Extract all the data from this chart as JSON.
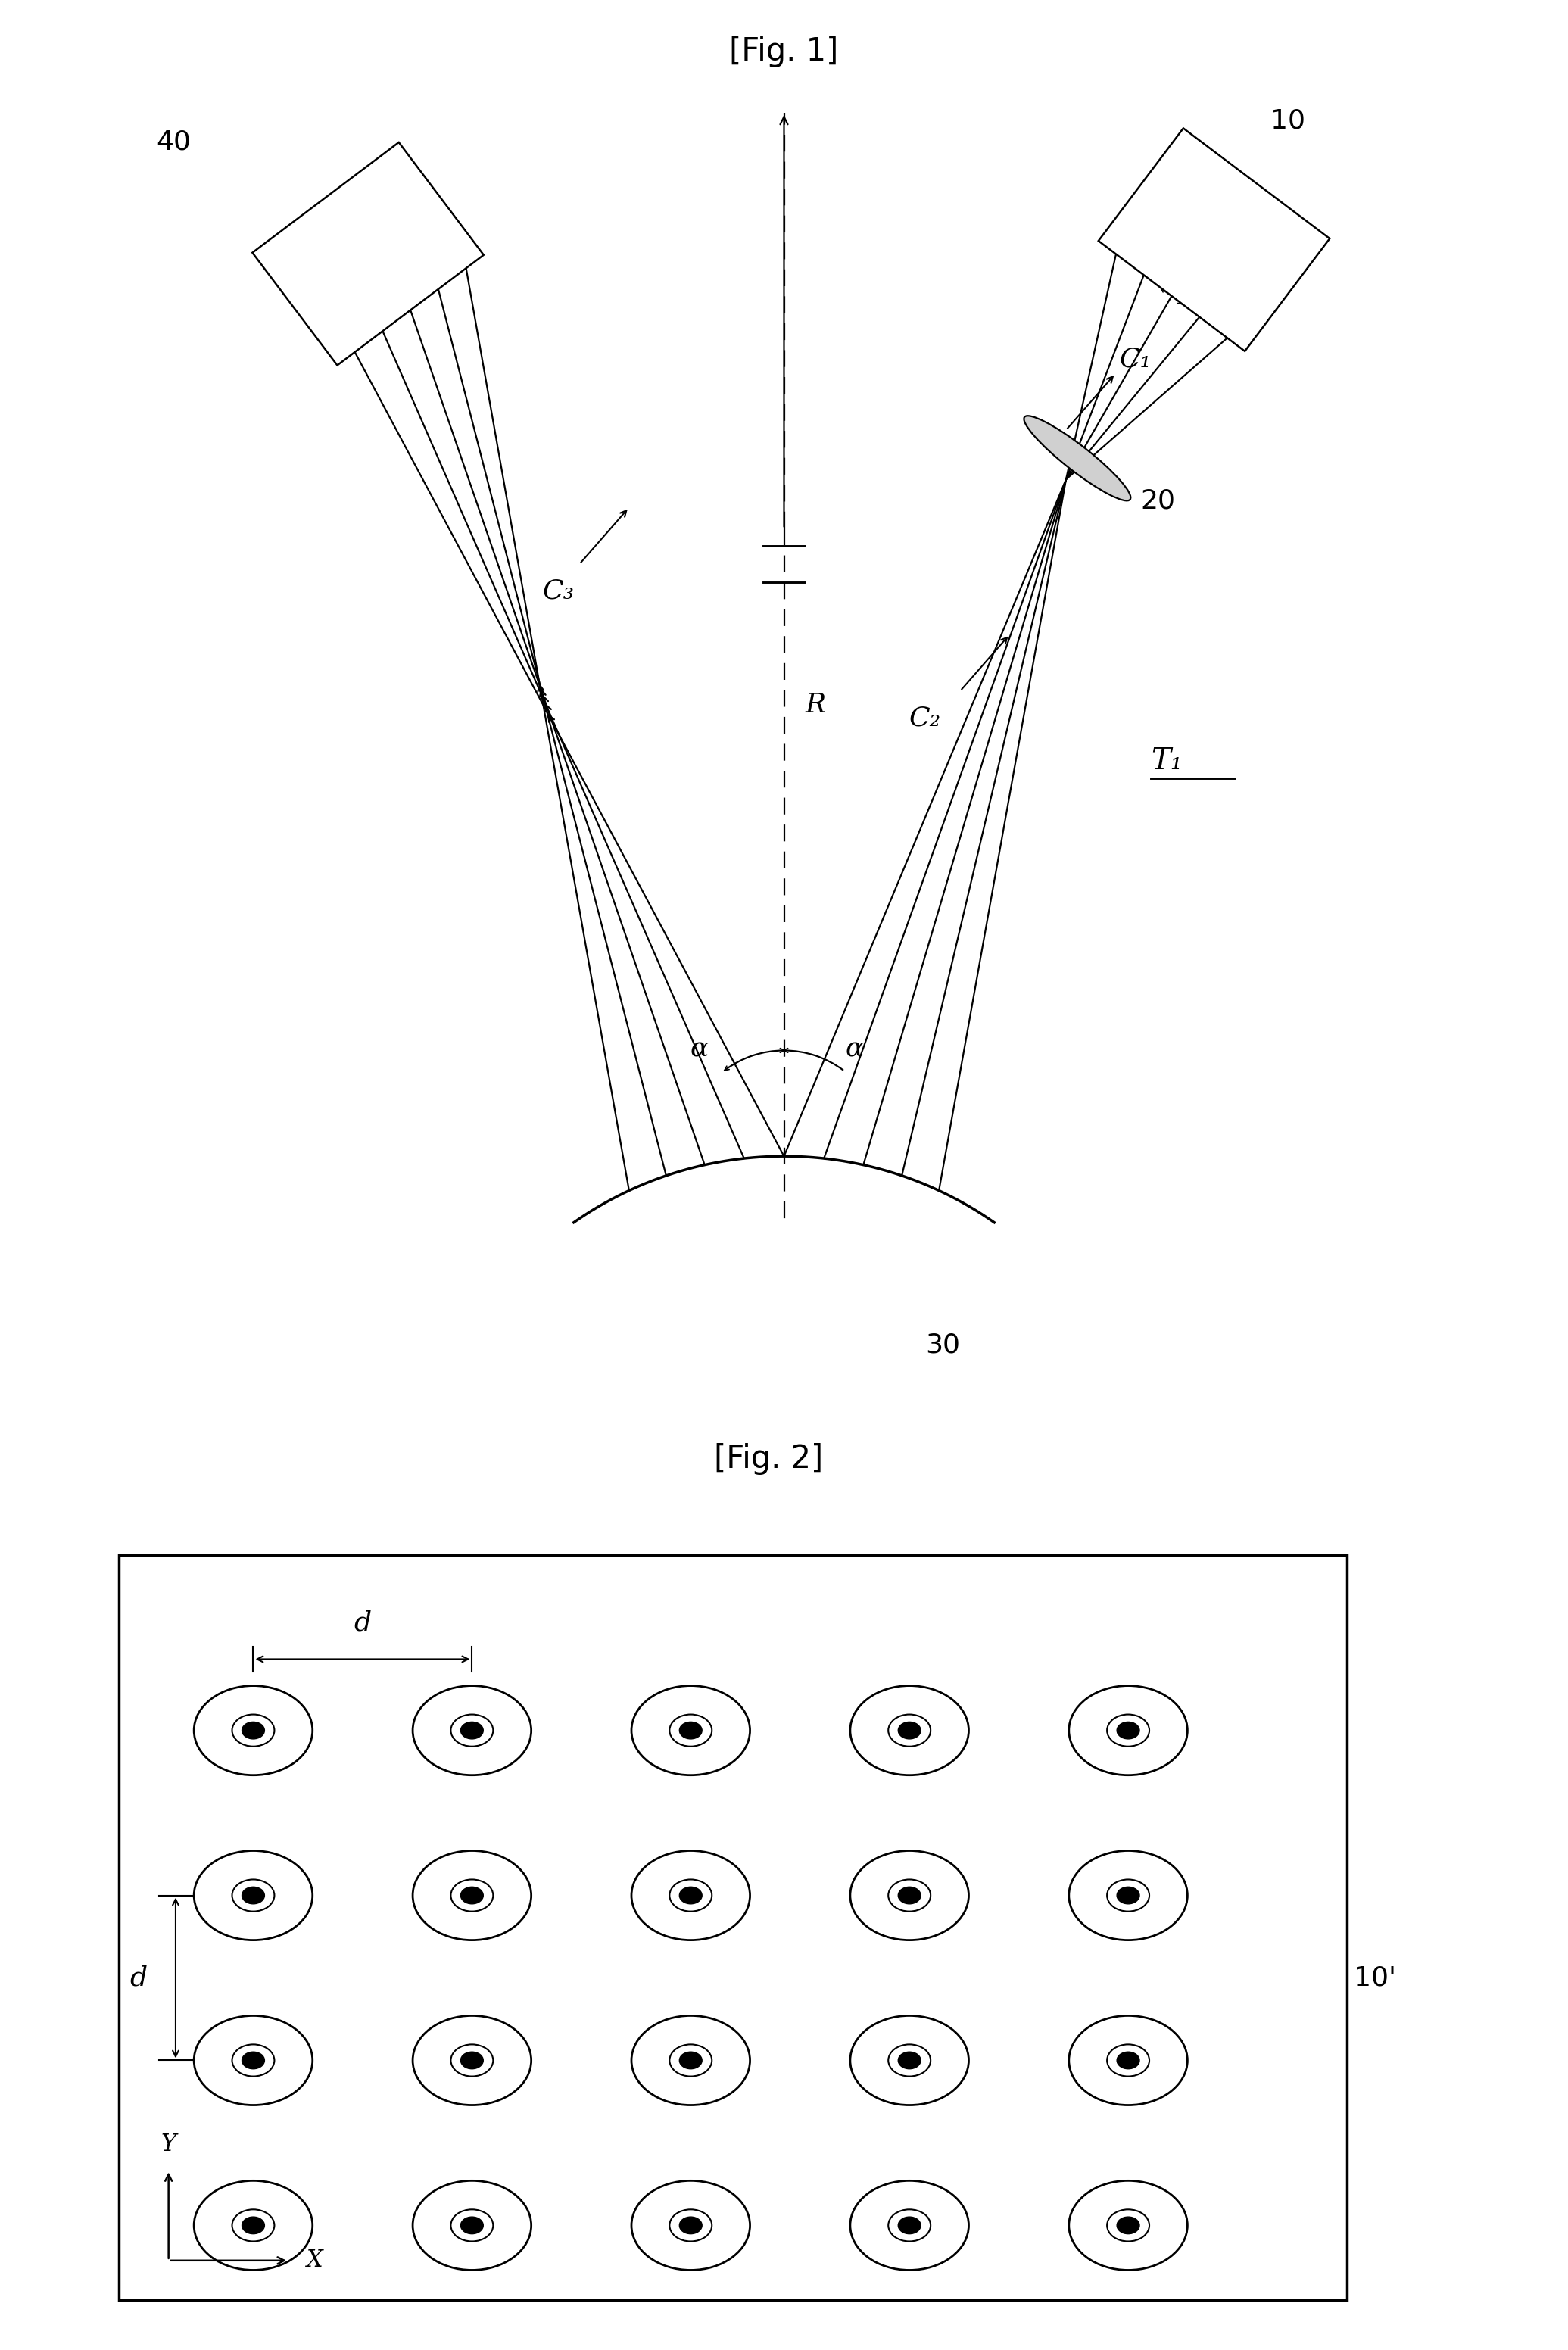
{
  "fig1_title": "[Fig. 1]",
  "fig2_title": "[Fig. 2]",
  "bg_color": "#ffffff",
  "label_40": "40",
  "label_10": "10",
  "label_20": "20",
  "label_30": "30",
  "label_C1": "C₁",
  "label_C2": "C₂",
  "label_C3": "C₃",
  "label_R": "R",
  "label_alpha": "α",
  "label_d": "d",
  "label_T1": "T₁",
  "label_10prime": "10'",
  "label_Y": "Y",
  "label_X": "X",
  "grid_rows": 4,
  "grid_cols": 5,
  "num_beams": 5,
  "fig1_title_fontsize": 30,
  "fig2_title_fontsize": 30,
  "label_fontsize": 26,
  "small_label_fontsize": 22
}
